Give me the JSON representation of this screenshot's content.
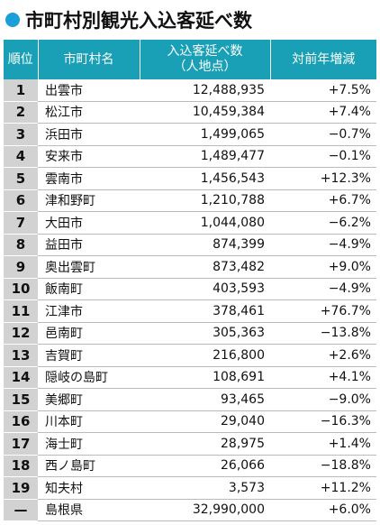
{
  "title": "市町村別観光入込客延べ数",
  "table": {
    "header": [
      "順位",
      "市町村名",
      "入込客延べ数",
      "対前年増減"
    ],
    "header_sub": "（人地点）",
    "rows": [
      [
        "1",
        "出雲市",
        "12,488,935",
        "+7.5%"
      ],
      [
        "2",
        "松江市",
        "10,459,384",
        "+7.4%"
      ],
      [
        "3",
        "浜田市",
        "1,499,065",
        "−0.7%"
      ],
      [
        "4",
        "安来市",
        "1,489,477",
        "−0.1%"
      ],
      [
        "5",
        "雲南市",
        "1,456,543",
        "+12.3%"
      ],
      [
        "6",
        "津和野町",
        "1,210,788",
        "+6.7%"
      ],
      [
        "7",
        "大田市",
        "1,044,080",
        "−6.2%"
      ],
      [
        "8",
        "益田市",
        "874,399",
        "−4.9%"
      ],
      [
        "9",
        "奥出雲町",
        "873,482",
        "+9.0%"
      ],
      [
        "10",
        "飯南町",
        "403,593",
        "−4.9%"
      ],
      [
        "11",
        "江津市",
        "378,461",
        "+76.7%"
      ],
      [
        "12",
        "邑南町",
        "305,363",
        "−13.8%"
      ],
      [
        "13",
        "吉賀町",
        "216,800",
        "+2.6%"
      ],
      [
        "14",
        "隠岐の島町",
        "108,691",
        "+4.1%"
      ],
      [
        "15",
        "美郷町",
        "93,465",
        "−9.0%"
      ],
      [
        "16",
        "川本町",
        "29,040",
        "−16.3%"
      ],
      [
        "17",
        "海士町",
        "28,975",
        "+1.4%"
      ],
      [
        "18",
        "西ノ島町",
        "26,066",
        "−18.8%"
      ],
      [
        "19",
        "知夫村",
        "3,573",
        "+11.2%"
      ],
      [
        "—",
        "島根県",
        "32,990,000",
        "+6.0%"
      ]
    ]
  }
}
